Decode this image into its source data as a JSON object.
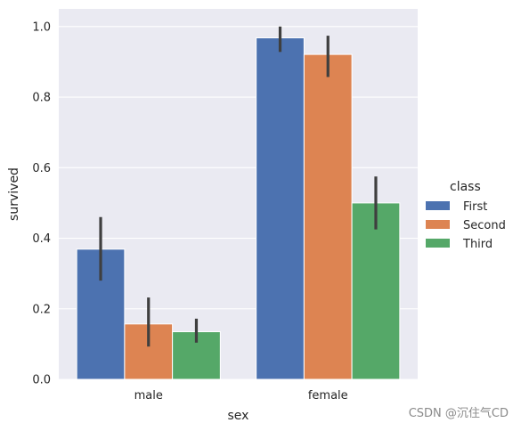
{
  "chart_data": {
    "type": "bar",
    "xlabel": "sex",
    "ylabel": "survived",
    "categories": [
      "male",
      "female"
    ],
    "ylim": [
      0,
      1.05
    ],
    "yticks": [
      "0.0",
      "0.2",
      "0.4",
      "0.6",
      "0.8",
      "1.0"
    ],
    "grid": true,
    "legend_title": "class",
    "legend_position": "right",
    "series": [
      {
        "name": "First",
        "color": "#4c72b0",
        "values": [
          0.369,
          0.968
        ],
        "ci_low": [
          0.28,
          0.928
        ],
        "ci_high": [
          0.46,
          1.0
        ]
      },
      {
        "name": "Second",
        "color": "#dd8452",
        "values": [
          0.157,
          0.921
        ],
        "ci_low": [
          0.093,
          0.857
        ],
        "ci_high": [
          0.232,
          0.974
        ]
      },
      {
        "name": "Third",
        "color": "#55a868",
        "values": [
          0.135,
          0.5
        ],
        "ci_low": [
          0.104,
          0.425
        ],
        "ci_high": [
          0.172,
          0.575
        ]
      }
    ]
  },
  "watermark": "CSDN @沉住气CD"
}
